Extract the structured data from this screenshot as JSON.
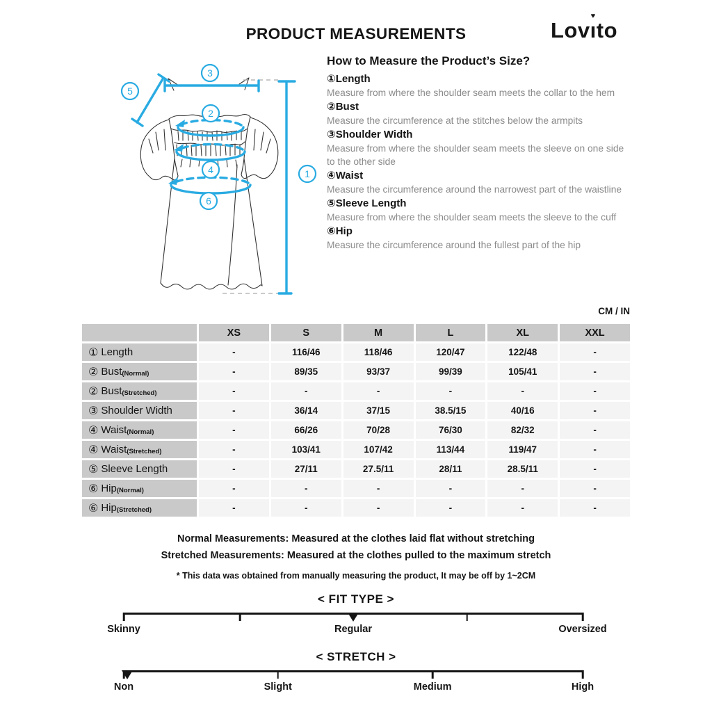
{
  "header": {
    "title": "PRODUCT MEASUREMENTS",
    "brand": {
      "pre": "Lov",
      "i": "ı",
      "tittle": "♥",
      "post": "to",
      "full": "Lovito"
    }
  },
  "guide": {
    "heading": "How to Measure the Product’s Size?",
    "items": [
      {
        "num": "①",
        "label": "Length",
        "desc": "Measure from where the shoulder seam meets the collar to the hem"
      },
      {
        "num": "②",
        "label": "Bust",
        "desc": "Measure the circumference at the stitches below the armpits"
      },
      {
        "num": "③",
        "label": "Shoulder Width",
        "desc": "Measure from where the shoulder seam meets the sleeve on one side to the other side"
      },
      {
        "num": "④",
        "label": "Waist",
        "desc": "Measure the circumference around the narrowest part of the waistline"
      },
      {
        "num": "⑤",
        "label": "Sleeve Length",
        "desc": "Measure from where the shoulder seam meets the sleeve to the cuff"
      },
      {
        "num": "⑥",
        "label": "Hip",
        "desc": "Measure the circumference around the fullest part of the hip"
      }
    ]
  },
  "diagram": {
    "callouts": {
      "length": "1",
      "bust": "2",
      "shoulder": "3",
      "waist": "4",
      "sleeve": "5",
      "hip": "6"
    }
  },
  "table": {
    "unit_label": "CM / IN",
    "columns": [
      "XS",
      "S",
      "M",
      "L",
      "XL",
      "XXL"
    ],
    "rows": [
      {
        "num": "①",
        "label": "Length",
        "sub": "",
        "values": [
          "-",
          "116/46",
          "118/46",
          "120/47",
          "122/48",
          "-"
        ]
      },
      {
        "num": "②",
        "label": "Bust",
        "sub": "(Normal)",
        "values": [
          "-",
          "89/35",
          "93/37",
          "99/39",
          "105/41",
          "-"
        ]
      },
      {
        "num": "②",
        "label": "Bust",
        "sub": "(Stretched)",
        "values": [
          "-",
          "-",
          "-",
          "-",
          "-",
          "-"
        ]
      },
      {
        "num": "③",
        "label": "Shoulder Width",
        "sub": "",
        "values": [
          "-",
          "36/14",
          "37/15",
          "38.5/15",
          "40/16",
          "-"
        ]
      },
      {
        "num": "④",
        "label": "Waist",
        "sub": "(Normal)",
        "values": [
          "-",
          "66/26",
          "70/28",
          "76/30",
          "82/32",
          "-"
        ]
      },
      {
        "num": "④",
        "label": "Waist",
        "sub": "(Stretched)",
        "values": [
          "-",
          "103/41",
          "107/42",
          "113/44",
          "119/47",
          "-"
        ]
      },
      {
        "num": "⑤",
        "label": "Sleeve Length",
        "sub": "",
        "values": [
          "-",
          "27/11",
          "27.5/11",
          "28/11",
          "28.5/11",
          "-"
        ]
      },
      {
        "num": "⑥",
        "label": "Hip",
        "sub": "(Normal)",
        "values": [
          "-",
          "-",
          "-",
          "-",
          "-",
          "-"
        ]
      },
      {
        "num": "⑥",
        "label": "Hip",
        "sub": "(Stretched)",
        "values": [
          "-",
          "-",
          "-",
          "-",
          "-",
          "-"
        ]
      }
    ]
  },
  "notes": {
    "line1": "Normal Measurements: Measured at the clothes laid flat without stretching",
    "line2": "Stretched  Measurements: Measured at the clothes pulled to the maximum stretch",
    "asterisk": "* This data was obtained from manually measuring the product, It may be off by 1~2CM"
  },
  "fit_type": {
    "heading": "< FIT TYPE >",
    "selected": "Regular",
    "labels": [
      {
        "text": "Skinny",
        "pct": 0
      },
      {
        "text": "Regular",
        "pct": 50
      },
      {
        "text": "Oversized",
        "pct": 100
      }
    ],
    "ticks_pct": [
      0,
      25.3,
      74.8,
      100
    ],
    "marker_pct": 50
  },
  "stretch": {
    "heading": "< STRETCH >",
    "selected": "Non",
    "labels": [
      {
        "text": "Non",
        "pct": 0
      },
      {
        "text": "Slight",
        "pct": 33.6
      },
      {
        "text": "Medium",
        "pct": 67.3
      },
      {
        "text": "High",
        "pct": 100
      }
    ],
    "ticks_pct": [
      0,
      33.6,
      67.3,
      100
    ],
    "marker_pct": 0.8
  },
  "colors": {
    "accent": "#29abe2",
    "table_header_bg": "#c9c9c9",
    "table_cell_bg": "#f4f4f4",
    "muted_text": "#8a8a8a",
    "line_art": "#333333",
    "dashed_gray": "#b8b8b8"
  }
}
